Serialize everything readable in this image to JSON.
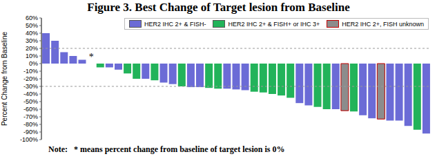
{
  "chart_data": {
    "type": "bar",
    "title": "Figure 3. Best Change of Target lesion from Baseline",
    "y_label": "Percent Change from Baseline",
    "categories": [
      null,
      null,
      null,
      null,
      null,
      null,
      null,
      null,
      null,
      null,
      null,
      null,
      null,
      null,
      null,
      null,
      null,
      null,
      null,
      null,
      null,
      null,
      null,
      null,
      null,
      null,
      null,
      null,
      null,
      null,
      null,
      null,
      null,
      null,
      null,
      null,
      null,
      null,
      null,
      null,
      null,
      null,
      null
    ],
    "series": [
      {
        "name": "HER2 IHC 2+ & FISH-",
        "color": "#6b6bd6",
        "values": [
          40,
          30,
          15,
          10,
          5,
          0,
          null,
          -5,
          -8,
          null,
          null,
          -20,
          null,
          -25,
          -27,
          null,
          -31,
          -31,
          null,
          null,
          -33,
          -34,
          -35,
          null,
          null,
          null,
          null,
          null,
          -52,
          -55,
          null,
          null,
          -60,
          null,
          null,
          -68,
          -72,
          null,
          -75,
          -75,
          -82,
          null,
          -92
        ]
      },
      {
        "name": "HER2 IHC 2+ & FISH+ or IHC 3+",
        "color": "#22b35a",
        "values": [
          null,
          null,
          null,
          null,
          null,
          null,
          -5,
          null,
          null,
          -13,
          -20,
          null,
          -22,
          null,
          null,
          -30,
          null,
          null,
          -32,
          -33,
          null,
          null,
          null,
          -37,
          -38,
          -40,
          -42,
          -45,
          null,
          null,
          -57,
          -60,
          null,
          null,
          -63,
          null,
          null,
          null,
          null,
          null,
          null,
          -87,
          null
        ]
      },
      {
        "name": "HER2 IHC 2+, FISH unknown",
        "color": "#8c8c8c",
        "values": [
          null,
          null,
          null,
          null,
          null,
          null,
          null,
          null,
          null,
          null,
          null,
          null,
          null,
          null,
          null,
          null,
          null,
          null,
          null,
          null,
          null,
          null,
          null,
          null,
          null,
          null,
          null,
          null,
          null,
          null,
          null,
          null,
          null,
          -62,
          null,
          null,
          null,
          -73,
          null,
          null,
          null,
          null,
          null
        ]
      }
    ],
    "ylim": [
      -100,
      60
    ],
    "yticks": [
      {
        "value": -100,
        "label": "-100%"
      },
      {
        "value": -90,
        "label": "-90%"
      },
      {
        "value": -80,
        "label": "-80%"
      },
      {
        "value": -70,
        "label": "-70%"
      },
      {
        "value": -60,
        "label": "-60%"
      },
      {
        "value": -50,
        "label": "-50%"
      },
      {
        "value": -40,
        "label": "-40%"
      },
      {
        "value": -30,
        "label": "-30%"
      },
      {
        "value": -20,
        "label": "-20%"
      },
      {
        "value": -10,
        "label": "-10%"
      },
      {
        "value": 0,
        "label": "0%"
      },
      {
        "value": 10,
        "label": "10%"
      },
      {
        "value": 20,
        "label": "20%"
      },
      {
        "value": 30,
        "label": "30%"
      },
      {
        "value": 40,
        "label": "40%"
      },
      {
        "value": 50,
        "label": "50%"
      },
      {
        "value": 60,
        "label": "60%"
      }
    ],
    "reference_lines": [
      20,
      -30
    ],
    "annotations": [
      {
        "text": "*",
        "index": 5,
        "value": 0
      },
      {
        "text": "Note:   * means percent change from baseline of target lesion is 0%"
      }
    ],
    "stacked": true,
    "grid": false,
    "legend": "top-right",
    "tick_labels": "y"
  }
}
